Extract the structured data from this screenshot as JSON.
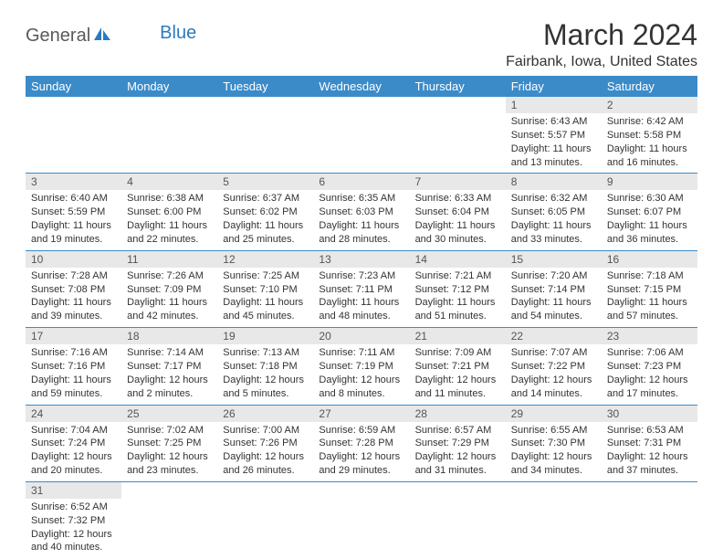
{
  "logo": {
    "part1": "General",
    "part2": "Blue"
  },
  "title": "March 2024",
  "location": "Fairbank, Iowa, United States",
  "colors": {
    "header_bg": "#3b8bc9",
    "header_text": "#ffffff",
    "daynum_bg": "#e8e8e8",
    "row_border": "#3b8bc9",
    "logo_blue": "#2b7abf",
    "logo_gray": "#5a5a5a",
    "body_text": "#333333",
    "page_bg": "#ffffff"
  },
  "typography": {
    "title_fontsize": 32,
    "location_fontsize": 16,
    "header_fontsize": 13,
    "daynum_fontsize": 12,
    "data_fontsize": 11
  },
  "weekdays": [
    "Sunday",
    "Monday",
    "Tuesday",
    "Wednesday",
    "Thursday",
    "Friday",
    "Saturday"
  ],
  "weeks": [
    [
      null,
      null,
      null,
      null,
      null,
      {
        "n": "1",
        "sr": "Sunrise: 6:43 AM",
        "ss": "Sunset: 5:57 PM",
        "dl": "Daylight: 11 hours and 13 minutes."
      },
      {
        "n": "2",
        "sr": "Sunrise: 6:42 AM",
        "ss": "Sunset: 5:58 PM",
        "dl": "Daylight: 11 hours and 16 minutes."
      }
    ],
    [
      {
        "n": "3",
        "sr": "Sunrise: 6:40 AM",
        "ss": "Sunset: 5:59 PM",
        "dl": "Daylight: 11 hours and 19 minutes."
      },
      {
        "n": "4",
        "sr": "Sunrise: 6:38 AM",
        "ss": "Sunset: 6:00 PM",
        "dl": "Daylight: 11 hours and 22 minutes."
      },
      {
        "n": "5",
        "sr": "Sunrise: 6:37 AM",
        "ss": "Sunset: 6:02 PM",
        "dl": "Daylight: 11 hours and 25 minutes."
      },
      {
        "n": "6",
        "sr": "Sunrise: 6:35 AM",
        "ss": "Sunset: 6:03 PM",
        "dl": "Daylight: 11 hours and 28 minutes."
      },
      {
        "n": "7",
        "sr": "Sunrise: 6:33 AM",
        "ss": "Sunset: 6:04 PM",
        "dl": "Daylight: 11 hours and 30 minutes."
      },
      {
        "n": "8",
        "sr": "Sunrise: 6:32 AM",
        "ss": "Sunset: 6:05 PM",
        "dl": "Daylight: 11 hours and 33 minutes."
      },
      {
        "n": "9",
        "sr": "Sunrise: 6:30 AM",
        "ss": "Sunset: 6:07 PM",
        "dl": "Daylight: 11 hours and 36 minutes."
      }
    ],
    [
      {
        "n": "10",
        "sr": "Sunrise: 7:28 AM",
        "ss": "Sunset: 7:08 PM",
        "dl": "Daylight: 11 hours and 39 minutes."
      },
      {
        "n": "11",
        "sr": "Sunrise: 7:26 AM",
        "ss": "Sunset: 7:09 PM",
        "dl": "Daylight: 11 hours and 42 minutes."
      },
      {
        "n": "12",
        "sr": "Sunrise: 7:25 AM",
        "ss": "Sunset: 7:10 PM",
        "dl": "Daylight: 11 hours and 45 minutes."
      },
      {
        "n": "13",
        "sr": "Sunrise: 7:23 AM",
        "ss": "Sunset: 7:11 PM",
        "dl": "Daylight: 11 hours and 48 minutes."
      },
      {
        "n": "14",
        "sr": "Sunrise: 7:21 AM",
        "ss": "Sunset: 7:12 PM",
        "dl": "Daylight: 11 hours and 51 minutes."
      },
      {
        "n": "15",
        "sr": "Sunrise: 7:20 AM",
        "ss": "Sunset: 7:14 PM",
        "dl": "Daylight: 11 hours and 54 minutes."
      },
      {
        "n": "16",
        "sr": "Sunrise: 7:18 AM",
        "ss": "Sunset: 7:15 PM",
        "dl": "Daylight: 11 hours and 57 minutes."
      }
    ],
    [
      {
        "n": "17",
        "sr": "Sunrise: 7:16 AM",
        "ss": "Sunset: 7:16 PM",
        "dl": "Daylight: 11 hours and 59 minutes."
      },
      {
        "n": "18",
        "sr": "Sunrise: 7:14 AM",
        "ss": "Sunset: 7:17 PM",
        "dl": "Daylight: 12 hours and 2 minutes."
      },
      {
        "n": "19",
        "sr": "Sunrise: 7:13 AM",
        "ss": "Sunset: 7:18 PM",
        "dl": "Daylight: 12 hours and 5 minutes."
      },
      {
        "n": "20",
        "sr": "Sunrise: 7:11 AM",
        "ss": "Sunset: 7:19 PM",
        "dl": "Daylight: 12 hours and 8 minutes."
      },
      {
        "n": "21",
        "sr": "Sunrise: 7:09 AM",
        "ss": "Sunset: 7:21 PM",
        "dl": "Daylight: 12 hours and 11 minutes."
      },
      {
        "n": "22",
        "sr": "Sunrise: 7:07 AM",
        "ss": "Sunset: 7:22 PM",
        "dl": "Daylight: 12 hours and 14 minutes."
      },
      {
        "n": "23",
        "sr": "Sunrise: 7:06 AM",
        "ss": "Sunset: 7:23 PM",
        "dl": "Daylight: 12 hours and 17 minutes."
      }
    ],
    [
      {
        "n": "24",
        "sr": "Sunrise: 7:04 AM",
        "ss": "Sunset: 7:24 PM",
        "dl": "Daylight: 12 hours and 20 minutes."
      },
      {
        "n": "25",
        "sr": "Sunrise: 7:02 AM",
        "ss": "Sunset: 7:25 PM",
        "dl": "Daylight: 12 hours and 23 minutes."
      },
      {
        "n": "26",
        "sr": "Sunrise: 7:00 AM",
        "ss": "Sunset: 7:26 PM",
        "dl": "Daylight: 12 hours and 26 minutes."
      },
      {
        "n": "27",
        "sr": "Sunrise: 6:59 AM",
        "ss": "Sunset: 7:28 PM",
        "dl": "Daylight: 12 hours and 29 minutes."
      },
      {
        "n": "28",
        "sr": "Sunrise: 6:57 AM",
        "ss": "Sunset: 7:29 PM",
        "dl": "Daylight: 12 hours and 31 minutes."
      },
      {
        "n": "29",
        "sr": "Sunrise: 6:55 AM",
        "ss": "Sunset: 7:30 PM",
        "dl": "Daylight: 12 hours and 34 minutes."
      },
      {
        "n": "30",
        "sr": "Sunrise: 6:53 AM",
        "ss": "Sunset: 7:31 PM",
        "dl": "Daylight: 12 hours and 37 minutes."
      }
    ],
    [
      {
        "n": "31",
        "sr": "Sunrise: 6:52 AM",
        "ss": "Sunset: 7:32 PM",
        "dl": "Daylight: 12 hours and 40 minutes."
      },
      null,
      null,
      null,
      null,
      null,
      null
    ]
  ]
}
